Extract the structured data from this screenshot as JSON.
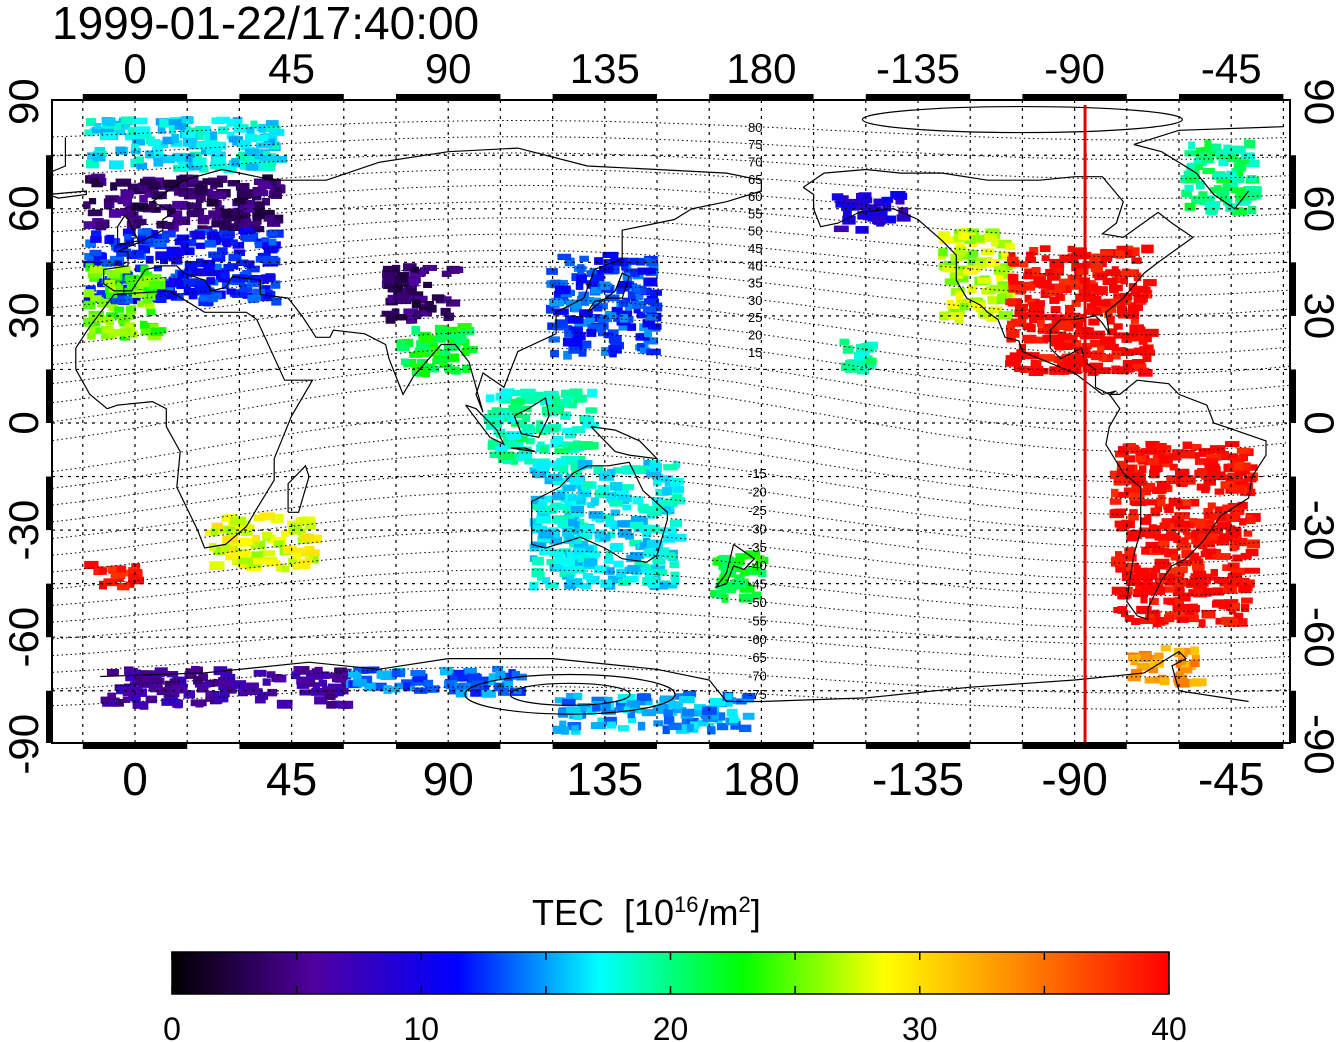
{
  "title": "1999-01-22/17:40:00",
  "axes": {
    "lon_labels": [
      "0",
      "45",
      "90",
      "135",
      "180",
      "-135",
      "-90",
      "-45"
    ],
    "lat_labels": [
      "90",
      "60",
      "30",
      "0",
      "-30",
      "-60",
      "-90"
    ]
  },
  "magnetic_latitude_labels": [
    "80",
    "75",
    "70",
    "65",
    "60",
    "55",
    "50",
    "45",
    "40",
    "35",
    "30",
    "25",
    "20",
    "15",
    "-15",
    "-20",
    "-25",
    "-30",
    "-35",
    "-40",
    "-45",
    "-50",
    "-55",
    "-60",
    "-65",
    "-70",
    "-75"
  ],
  "red_meridian_lon": -87,
  "colorbar": {
    "title_text": "TEC",
    "unit_prefix": "[10",
    "unit_exp": "16",
    "unit_mid": "/m",
    "unit_exp2": "2",
    "unit_suffix": "]",
    "min": 0,
    "max": 40,
    "tick_labels": [
      "0",
      "10",
      "20",
      "30",
      "40"
    ],
    "stops": [
      "#000000",
      "#5000a0",
      "#0000ff",
      "#00ffff",
      "#00ff00",
      "#ffff00",
      "#ff8000",
      "#ff0000"
    ]
  },
  "chart_data": {
    "type": "heatmap",
    "title": "1999-01-22/17:40:00",
    "x_axis": "longitude",
    "y_axis": "latitude",
    "ylim": [
      -90,
      90
    ],
    "value_label": "TEC [10^16/m^2]",
    "value_range": [
      0,
      40
    ],
    "regions": [
      {
        "lon": [
          -15,
          40
        ],
        "lat": [
          55,
          70
        ],
        "tec": 4
      },
      {
        "lon": [
          -15,
          40
        ],
        "lat": [
          35,
          55
        ],
        "tec": 12
      },
      {
        "lon": [
          -15,
          5
        ],
        "lat": [
          25,
          45
        ],
        "tec": 25
      },
      {
        "lon": [
          -15,
          40
        ],
        "lat": [
          72,
          86
        ],
        "tec": 17
      },
      {
        "lon": [
          20,
          50
        ],
        "lat": [
          -40,
          -25
        ],
        "tec": 28
      },
      {
        "lon": [
          -15,
          0
        ],
        "lat": [
          -45,
          -38
        ],
        "tec": 39
      },
      {
        "lon": [
          70,
          90
        ],
        "lat": [
          30,
          45
        ],
        "tec": 4
      },
      {
        "lon": [
          75,
          95
        ],
        "lat": [
          15,
          28
        ],
        "tec": 22
      },
      {
        "lon": [
          118,
          148
        ],
        "lat": [
          20,
          48
        ],
        "tec": 13
      },
      {
        "lon": [
          100,
          130
        ],
        "lat": [
          -10,
          10
        ],
        "tec": 19
      },
      {
        "lon": [
          113,
          155
        ],
        "lat": [
          -45,
          -10
        ],
        "tec": 17
      },
      {
        "lon": [
          165,
          180
        ],
        "lat": [
          -48,
          -35
        ],
        "tec": 22
      },
      {
        "lon": [
          -160,
          -140
        ],
        "lat": [
          55,
          65
        ],
        "tec": 9
      },
      {
        "lon": [
          -158,
          -150
        ],
        "lat": [
          15,
          25
        ],
        "tec": 19
      },
      {
        "lon": [
          -130,
          -110
        ],
        "lat": [
          30,
          55
        ],
        "tec": 27
      },
      {
        "lon": [
          -110,
          -70
        ],
        "lat": [
          15,
          50
        ],
        "tec": 40
      },
      {
        "lon": [
          -80,
          -40
        ],
        "lat": [
          -55,
          -5
        ],
        "tec": 40
      },
      {
        "lon": [
          -75,
          -55
        ],
        "lat": [
          -72,
          -62
        ],
        "tec": 33
      },
      {
        "lon": [
          -10,
          60
        ],
        "lat": [
          -78,
          -68
        ],
        "tec": 6
      },
      {
        "lon": [
          60,
          110
        ],
        "lat": [
          -75,
          -68
        ],
        "tec": 14
      },
      {
        "lon": [
          120,
          175
        ],
        "lat": [
          -85,
          -75
        ],
        "tec": 15
      },
      {
        "lon": [
          -60,
          -40
        ],
        "lat": [
          60,
          80
        ],
        "tec": 20
      }
    ]
  }
}
